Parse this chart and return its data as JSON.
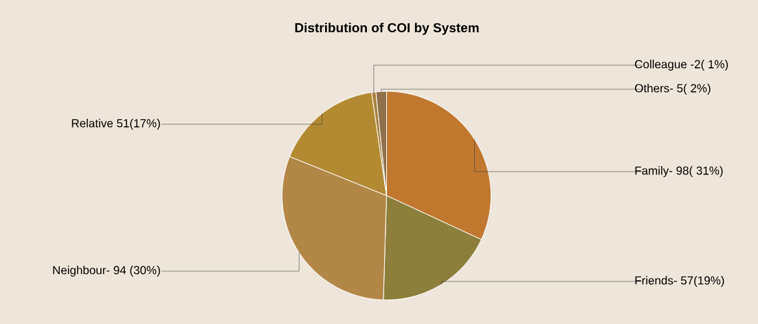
{
  "chart_data": {
    "type": "pie",
    "title": "Distribution of COI by System",
    "categories": [
      "Family- 98( 31%)",
      "Friends- 57(19%)",
      "Neighbour- 94 (30%)",
      "Relative  51(17%)",
      "Colleague -2( 1%)",
      "Others- 5( 2%)"
    ],
    "values": [
      98,
      57,
      94,
      51,
      2,
      5
    ],
    "colors": [
      "#c07830",
      "#8c7f3b",
      "#b38748",
      "#b38a33",
      "#a8823f",
      "#8f7048"
    ]
  }
}
